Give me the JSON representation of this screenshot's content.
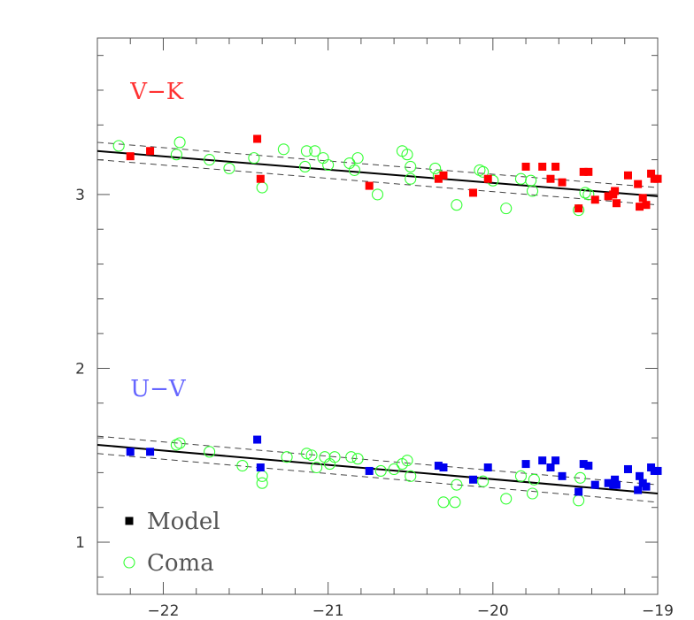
{
  "chart_data": {
    "type": "scatter",
    "title": "",
    "xlabel": "",
    "ylabel": "",
    "xlim": [
      -22.4,
      -19
    ],
    "ylim": [
      0.7,
      3.9
    ],
    "x_ticks": [
      {
        "value": -22,
        "label": "−22"
      },
      {
        "value": -21,
        "label": "−21"
      },
      {
        "value": -20,
        "label": "−20"
      },
      {
        "value": -19,
        "label": "−19"
      }
    ],
    "y_ticks": [
      {
        "value": 1,
        "label": "1"
      },
      {
        "value": 2,
        "label": "2"
      },
      {
        "value": 3,
        "label": "3"
      }
    ],
    "panels": [
      {
        "label": "V−K",
        "color": "#ff3333",
        "fit_line": {
          "x": [
            -22.4,
            -19
          ],
          "y": [
            3.25,
            2.99
          ]
        },
        "band_upper": {
          "x": [
            -22.4,
            -19
          ],
          "y": [
            3.3,
            3.04
          ]
        },
        "band_lower": {
          "x": [
            -22.4,
            -19
          ],
          "y": [
            3.2,
            2.94
          ]
        },
        "model": [
          {
            "x": -22.2,
            "y": 3.22
          },
          {
            "x": -22.08,
            "y": 3.25
          },
          {
            "x": -21.43,
            "y": 3.32
          },
          {
            "x": -21.41,
            "y": 3.09
          },
          {
            "x": -20.75,
            "y": 3.05
          },
          {
            "x": -20.33,
            "y": 3.09
          },
          {
            "x": -20.3,
            "y": 3.11
          },
          {
            "x": -20.12,
            "y": 3.01
          },
          {
            "x": -20.03,
            "y": 3.09
          },
          {
            "x": -19.8,
            "y": 3.16
          },
          {
            "x": -19.7,
            "y": 3.16
          },
          {
            "x": -19.65,
            "y": 3.09
          },
          {
            "x": -19.62,
            "y": 3.16
          },
          {
            "x": -19.58,
            "y": 3.07
          },
          {
            "x": -19.48,
            "y": 2.92
          },
          {
            "x": -19.45,
            "y": 3.13
          },
          {
            "x": -19.42,
            "y": 3.13
          },
          {
            "x": -19.38,
            "y": 2.97
          },
          {
            "x": -19.3,
            "y": 2.99
          },
          {
            "x": -19.27,
            "y": 3.0
          },
          {
            "x": -19.26,
            "y": 3.02
          },
          {
            "x": -19.25,
            "y": 2.95
          },
          {
            "x": -19.18,
            "y": 3.11
          },
          {
            "x": -19.12,
            "y": 3.06
          },
          {
            "x": -19.11,
            "y": 2.93
          },
          {
            "x": -19.09,
            "y": 2.98
          },
          {
            "x": -19.07,
            "y": 2.94
          },
          {
            "x": -19.04,
            "y": 3.12
          },
          {
            "x": -19.02,
            "y": 3.09
          },
          {
            "x": -19.0,
            "y": 3.09
          }
        ],
        "coma": [
          {
            "x": -22.27,
            "y": 3.28
          },
          {
            "x": -21.92,
            "y": 3.23
          },
          {
            "x": -21.9,
            "y": 3.3
          },
          {
            "x": -21.72,
            "y": 3.2
          },
          {
            "x": -21.6,
            "y": 3.15
          },
          {
            "x": -21.45,
            "y": 3.21
          },
          {
            "x": -21.4,
            "y": 3.04
          },
          {
            "x": -21.27,
            "y": 3.26
          },
          {
            "x": -21.14,
            "y": 3.16
          },
          {
            "x": -21.13,
            "y": 3.25
          },
          {
            "x": -21.08,
            "y": 3.25
          },
          {
            "x": -21.03,
            "y": 3.21
          },
          {
            "x": -21.0,
            "y": 3.17
          },
          {
            "x": -20.87,
            "y": 3.18
          },
          {
            "x": -20.84,
            "y": 3.14
          },
          {
            "x": -20.82,
            "y": 3.21
          },
          {
            "x": -20.7,
            "y": 3.0
          },
          {
            "x": -20.55,
            "y": 3.25
          },
          {
            "x": -20.52,
            "y": 3.23
          },
          {
            "x": -20.5,
            "y": 3.16
          },
          {
            "x": -20.5,
            "y": 3.09
          },
          {
            "x": -20.35,
            "y": 3.15
          },
          {
            "x": -20.33,
            "y": 3.11
          },
          {
            "x": -20.22,
            "y": 2.94
          },
          {
            "x": -20.08,
            "y": 3.14
          },
          {
            "x": -20.06,
            "y": 3.13
          },
          {
            "x": -20.0,
            "y": 3.08
          },
          {
            "x": -19.92,
            "y": 2.92
          },
          {
            "x": -19.83,
            "y": 3.09
          },
          {
            "x": -19.77,
            "y": 3.08
          },
          {
            "x": -19.76,
            "y": 3.02
          },
          {
            "x": -19.48,
            "y": 2.91
          },
          {
            "x": -19.44,
            "y": 3.01
          },
          {
            "x": -19.42,
            "y": 3.0
          }
        ]
      },
      {
        "label": "U−V",
        "color": "#6666ff",
        "fit_line": {
          "x": [
            -22.4,
            -19
          ],
          "y": [
            1.56,
            1.28
          ]
        },
        "band_upper": {
          "x": [
            -22.4,
            -19
          ],
          "y": [
            1.61,
            1.33
          ]
        },
        "band_lower": {
          "x": [
            -22.4,
            -19
          ],
          "y": [
            1.51,
            1.23
          ]
        },
        "model": [
          {
            "x": -22.2,
            "y": 1.52
          },
          {
            "x": -22.08,
            "y": 1.52
          },
          {
            "x": -21.43,
            "y": 1.59
          },
          {
            "x": -21.41,
            "y": 1.43
          },
          {
            "x": -20.75,
            "y": 1.41
          },
          {
            "x": -20.33,
            "y": 1.44
          },
          {
            "x": -20.3,
            "y": 1.43
          },
          {
            "x": -20.12,
            "y": 1.36
          },
          {
            "x": -20.03,
            "y": 1.43
          },
          {
            "x": -19.8,
            "y": 1.45
          },
          {
            "x": -19.7,
            "y": 1.47
          },
          {
            "x": -19.65,
            "y": 1.43
          },
          {
            "x": -19.62,
            "y": 1.47
          },
          {
            "x": -19.58,
            "y": 1.38
          },
          {
            "x": -19.48,
            "y": 1.29
          },
          {
            "x": -19.45,
            "y": 1.45
          },
          {
            "x": -19.42,
            "y": 1.44
          },
          {
            "x": -19.38,
            "y": 1.33
          },
          {
            "x": -19.3,
            "y": 1.34
          },
          {
            "x": -19.27,
            "y": 1.33
          },
          {
            "x": -19.26,
            "y": 1.36
          },
          {
            "x": -19.25,
            "y": 1.33
          },
          {
            "x": -19.18,
            "y": 1.42
          },
          {
            "x": -19.12,
            "y": 1.3
          },
          {
            "x": -19.11,
            "y": 1.38
          },
          {
            "x": -19.09,
            "y": 1.34
          },
          {
            "x": -19.07,
            "y": 1.32
          },
          {
            "x": -19.04,
            "y": 1.43
          },
          {
            "x": -19.02,
            "y": 1.41
          },
          {
            "x": -19.0,
            "y": 1.41
          }
        ],
        "coma": [
          {
            "x": -21.92,
            "y": 1.56
          },
          {
            "x": -21.9,
            "y": 1.57
          },
          {
            "x": -21.72,
            "y": 1.52
          },
          {
            "x": -21.52,
            "y": 1.44
          },
          {
            "x": -21.4,
            "y": 1.38
          },
          {
            "x": -21.4,
            "y": 1.34
          },
          {
            "x": -21.25,
            "y": 1.49
          },
          {
            "x": -21.13,
            "y": 1.51
          },
          {
            "x": -21.1,
            "y": 1.5
          },
          {
            "x": -21.07,
            "y": 1.43
          },
          {
            "x": -21.02,
            "y": 1.49
          },
          {
            "x": -20.99,
            "y": 1.45
          },
          {
            "x": -20.96,
            "y": 1.49
          },
          {
            "x": -20.86,
            "y": 1.49
          },
          {
            "x": -20.82,
            "y": 1.48
          },
          {
            "x": -20.68,
            "y": 1.41
          },
          {
            "x": -20.6,
            "y": 1.42
          },
          {
            "x": -20.55,
            "y": 1.45
          },
          {
            "x": -20.52,
            "y": 1.47
          },
          {
            "x": -20.5,
            "y": 1.38
          },
          {
            "x": -20.3,
            "y": 1.23
          },
          {
            "x": -20.23,
            "y": 1.23
          },
          {
            "x": -20.22,
            "y": 1.33
          },
          {
            "x": -20.06,
            "y": 1.35
          },
          {
            "x": -19.92,
            "y": 1.25
          },
          {
            "x": -19.83,
            "y": 1.38
          },
          {
            "x": -19.76,
            "y": 1.28
          },
          {
            "x": -19.75,
            "y": 1.36
          },
          {
            "x": -19.48,
            "y": 1.24
          },
          {
            "x": -19.47,
            "y": 1.37
          }
        ]
      }
    ],
    "legend": {
      "placement": "bottom-left",
      "entries": [
        {
          "label": "Model",
          "marker": "filled-square",
          "color": "#000000",
          "text_color": "#555555"
        },
        {
          "label": "Coma",
          "marker": "open-circle",
          "color": "#33ff33",
          "text_color": "#33ff33"
        }
      ]
    },
    "model_marker_colors": {
      "V−K": "#ff0000",
      "U−V": "#0000ee"
    },
    "coma_color": "#33ff33",
    "line_color": "#000000",
    "band_color": "#444444"
  }
}
